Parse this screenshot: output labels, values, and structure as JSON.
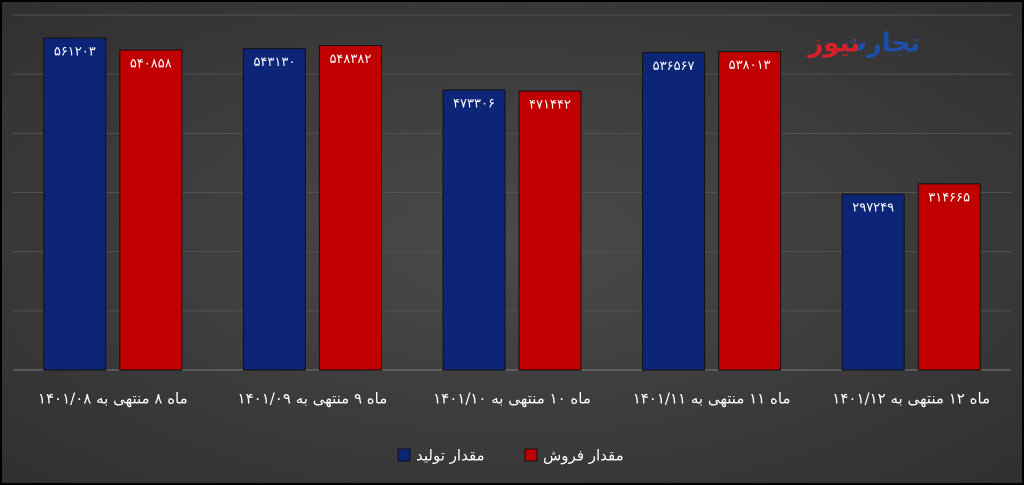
{
  "chart_data": {
    "type": "bar",
    "logo": {
      "part1": "تجارت",
      "part2": "نیوز"
    },
    "categories": [
      "ماه ۸ منتهی به ۱۴۰۱/۰۸",
      "ماه ۹ منتهی به ۱۴۰۱/۰۹",
      "ماه ۱۰ منتهی به ۱۴۰۱/۱۰",
      "ماه ۱۱ منتهی به ۱۴۰۱/۱۱",
      "ماه ۱۲ منتهی به ۱۴۰۱/۱۲"
    ],
    "series": [
      {
        "name": "مقدار تولید",
        "color": "#0c2577",
        "values": [
          561203,
          543130,
          473306,
          536567,
          297249
        ],
        "value_labels": [
          "۵۶۱۲۰۳",
          "۵۴۳۱۳۰",
          "۴۷۳۳۰۶",
          "۵۳۶۵۶۷",
          "۲۹۷۲۴۹"
        ]
      },
      {
        "name": "مقدار فروش",
        "color": "#c00000",
        "values": [
          540858,
          548382,
          471442,
          538013,
          314665
        ],
        "value_labels": [
          "۵۴۰۸۵۸",
          "۵۴۸۳۸۲",
          "۴۷۱۴۴۲",
          "۵۳۸۰۱۳",
          "۳۱۴۶۶۵"
        ]
      }
    ],
    "ylim": [
      0,
      600000
    ],
    "yticks": [
      0,
      100000,
      200000,
      300000,
      400000,
      500000,
      600000
    ],
    "grid": true
  }
}
